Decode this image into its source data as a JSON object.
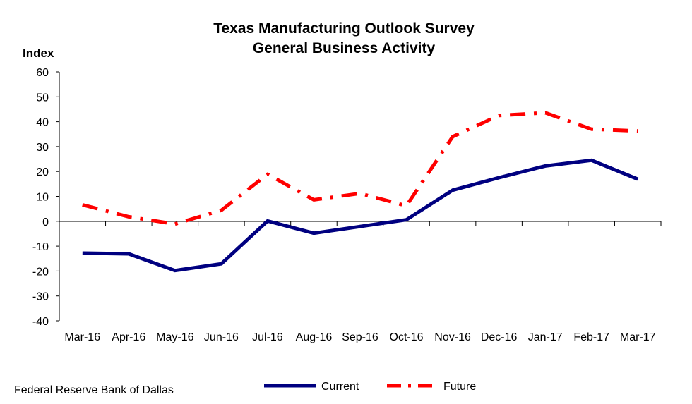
{
  "chart_data": {
    "type": "line",
    "title": "Texas Manufacturing Outlook Survey",
    "subtitle": "General Business Activity",
    "ylabel": "Index",
    "xlabel": "",
    "ylim": [
      -40,
      60
    ],
    "yticks": [
      60,
      50,
      40,
      30,
      20,
      10,
      0,
      -10,
      -20,
      -30,
      -40
    ],
    "ytick_labels": [
      "60",
      "50",
      "40",
      "30",
      "20",
      "10",
      "0",
      "-10",
      "-20",
      "-30",
      "-40"
    ],
    "categories": [
      "Mar-16",
      "Apr-16",
      "May-16",
      "Jun-16",
      "Jul-16",
      "Aug-16",
      "Sep-16",
      "Oct-16",
      "Nov-16",
      "Dec-16",
      "Jan-17",
      "Feb-17",
      "Mar-17"
    ],
    "series": [
      {
        "name": "Current",
        "color": "#000080",
        "style": "solid",
        "values": [
          -12.8,
          -13.1,
          -19.8,
          -17.1,
          0.1,
          -4.8,
          -2.1,
          0.6,
          12.5,
          17.5,
          22.2,
          24.5,
          16.9
        ]
      },
      {
        "name": "Future",
        "color": "#ff0000",
        "style": "dash-dot",
        "values": [
          6.6,
          1.8,
          -1.1,
          4.4,
          18.9,
          8.6,
          11.2,
          6.2,
          34.0,
          42.5,
          43.6,
          37.0,
          36.3
        ]
      }
    ],
    "legend": {
      "position": "bottom-center",
      "entries": [
        "Current",
        "Future"
      ]
    },
    "grid": false,
    "source": "Federal Reserve Bank of Dallas"
  }
}
